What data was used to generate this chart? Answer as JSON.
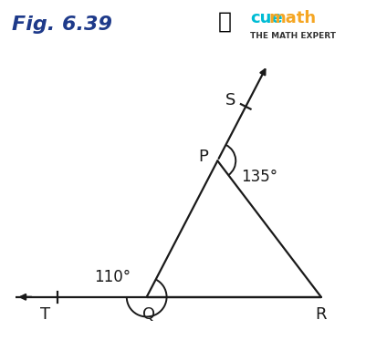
{
  "fig_label": "Fig. 6.39",
  "fig_label_color": "#1e3a8a",
  "fig_label_fontsize": 16,
  "bg_color": "#ffffff",
  "cuemath_text": "cue",
  "cuemath_text2": "math",
  "cuemath_color": "#00bcd4",
  "cuemath_color2": "#f5a623",
  "subtitle_text": "THE MATH EXPERT",
  "subtitle_color": "#333333",
  "angle_SPR": "135°",
  "angle_PQT": "110°",
  "point_Q": [
    0.4,
    0.175
  ],
  "point_R": [
    0.88,
    0.175
  ],
  "point_P": [
    0.595,
    0.555
  ],
  "line_color": "#1a1a1a",
  "label_color": "#1a1a1a",
  "label_fontsize": 13
}
